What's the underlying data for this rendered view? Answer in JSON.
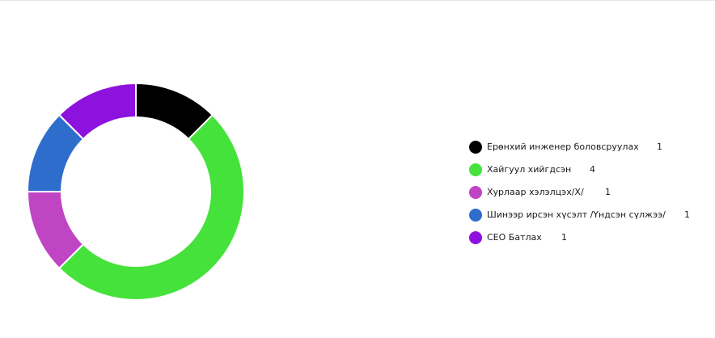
{
  "chart_data": {
    "type": "pie",
    "donut": true,
    "title": "",
    "legend_position": "right",
    "series": [
      {
        "label": "Ерөнхий инженер боловсруулах",
        "value": 1,
        "color": "#000000"
      },
      {
        "label": "Хайгуул хийгдсэн",
        "value": 4,
        "color": "#46e23c"
      },
      {
        "label": "Хурлаар хэлэлцэх/Х/",
        "value": 1,
        "color": "#bf45c4"
      },
      {
        "label": "Шинээр ирсэн хүсэлт /Үндсэн сүлжээ/",
        "value": 1,
        "color": "#2f6dcc"
      },
      {
        "label": "CEO Батлах",
        "value": 1,
        "color": "#8e12dd"
      }
    ]
  }
}
